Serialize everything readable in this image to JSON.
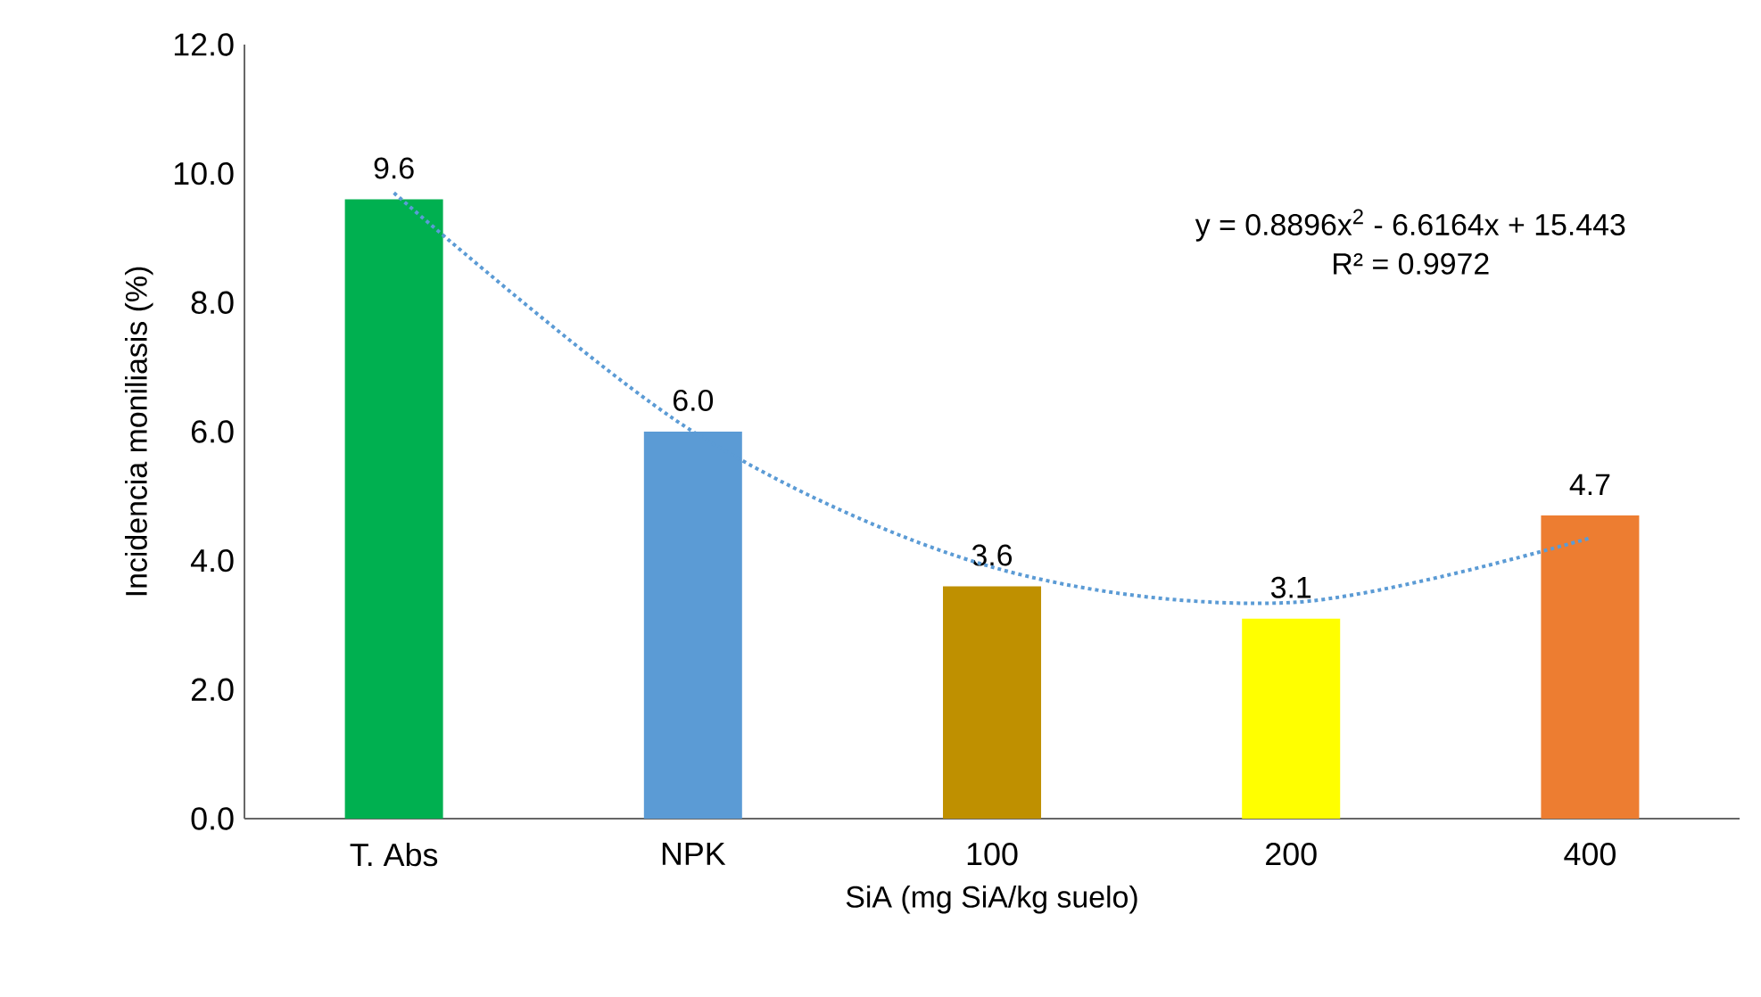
{
  "chart_data": {
    "type": "bar",
    "xlabel": "SiA (mg SiA/kg suelo)",
    "ylabel": "Incidencia moniliasis (%)",
    "categories": [
      "T. Abs",
      "NPK",
      "100",
      "200",
      "400"
    ],
    "values": [
      9.6,
      6.0,
      3.6,
      3.1,
      4.7
    ],
    "value_labels": [
      "9.6",
      "6.0",
      "3.6",
      "3.1",
      "4.7"
    ],
    "colors": [
      "#00b050",
      "#5b9bd5",
      "#bf9000",
      "#ffff00",
      "#ed7d31"
    ],
    "series": [
      {
        "type": "line",
        "color": "#5b9bd5",
        "line_style": "dotted",
        "values": [
          9.7,
          6.0,
          3.9,
          3.35,
          4.35
        ]
      }
    ],
    "ylim": [
      0,
      12
    ],
    "yticks": [
      {
        "value": 0,
        "label": "0.0"
      },
      {
        "value": 2,
        "label": "2.0"
      },
      {
        "value": 4,
        "label": "4.0"
      },
      {
        "value": 6,
        "label": "6.0"
      },
      {
        "value": 8,
        "label": "8.0"
      },
      {
        "value": 10,
        "label": "10.0"
      },
      {
        "value": 12,
        "label": "12.0"
      }
    ],
    "annotations": [
      "y = 0.8896x$^{2}$ - 6.6164x + 15.443",
      "R² = 0.9972"
    ],
    "grid": false
  }
}
